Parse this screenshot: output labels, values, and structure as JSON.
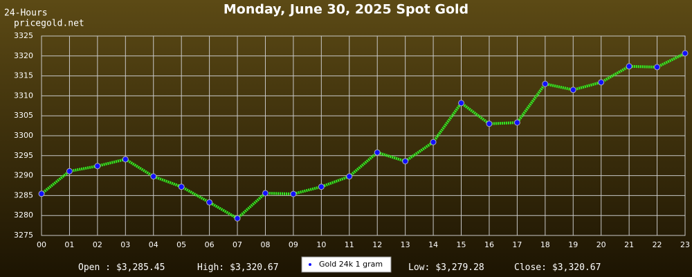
{
  "chart_data": {
    "type": "line",
    "title": "Monday, June 30, 2025 Spot Gold",
    "period": "24-Hours",
    "source": "pricegold.net",
    "categories": [
      "00",
      "01",
      "02",
      "03",
      "04",
      "05",
      "06",
      "07",
      "08",
      "09",
      "10",
      "11",
      "12",
      "13",
      "14",
      "15",
      "16",
      "17",
      "18",
      "19",
      "20",
      "21",
      "22",
      "23"
    ],
    "series": [
      {
        "name": "Gold 24k 1 gram",
        "color": "#33ee22",
        "marker_color": "#1010ff",
        "values": [
          3285.45,
          3291.1,
          3292.4,
          3294.1,
          3289.8,
          3287.2,
          3283.3,
          3279.28,
          3285.6,
          3285.4,
          3287.2,
          3289.8,
          3295.8,
          3293.6,
          3298.4,
          3308.2,
          3303.0,
          3303.3,
          3313.0,
          3311.5,
          3313.4,
          3317.4,
          3317.2,
          3320.67
        ]
      }
    ],
    "ylim": [
      3275,
      3325
    ],
    "yticks": [
      3275,
      3280,
      3285,
      3290,
      3295,
      3300,
      3305,
      3310,
      3315,
      3320,
      3325
    ],
    "grid": true,
    "stats": [
      {
        "label": "Open :",
        "value": "$3,285.45"
      },
      {
        "label": "High:",
        "value": "$3,320.67"
      },
      {
        "label": "Low:",
        "value": "$3,279.28"
      },
      {
        "label": "Close:",
        "value": "$3,320.67"
      }
    ]
  }
}
